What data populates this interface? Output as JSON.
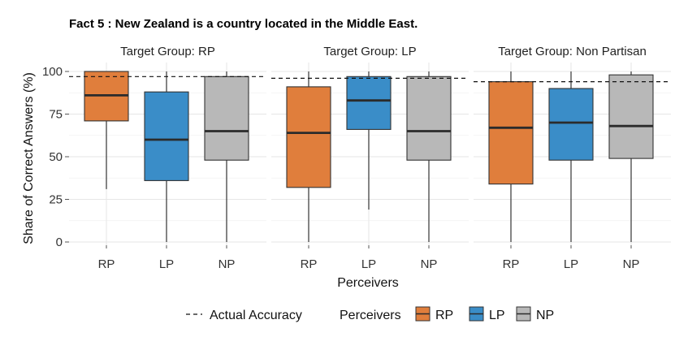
{
  "chart_data": {
    "type": "boxplot",
    "title": "Fact 5 :  New Zealand is a country located in the Middle East.",
    "ylabel": "Share of Correct Answers (%)",
    "xlabel": "Perceivers",
    "ylim": [
      0,
      100
    ],
    "yticks": [
      "0",
      "25",
      "50",
      "75",
      "100"
    ],
    "categories": [
      "RP",
      "LP",
      "NP"
    ],
    "colors": {
      "RP": "#E07E3C",
      "LP": "#3A8DC8",
      "NP": "#B8B8B8"
    },
    "panels": [
      {
        "label": "Target Group: RP",
        "actual_accuracy": 97,
        "boxes": [
          {
            "group": "RP",
            "min": 31,
            "q1": 71,
            "median": 86,
            "q3": 100,
            "max": 100
          },
          {
            "group": "LP",
            "min": 0,
            "q1": 36,
            "median": 60,
            "q3": 88,
            "max": 100
          },
          {
            "group": "NP",
            "min": 0,
            "q1": 48,
            "median": 65,
            "q3": 97,
            "max": 100
          }
        ]
      },
      {
        "label": "Target Group: LP",
        "actual_accuracy": 96,
        "boxes": [
          {
            "group": "RP",
            "min": 0,
            "q1": 32,
            "median": 64,
            "q3": 91,
            "max": 100
          },
          {
            "group": "LP",
            "min": 19,
            "q1": 66,
            "median": 83,
            "q3": 97,
            "max": 100
          },
          {
            "group": "NP",
            "min": 0,
            "q1": 48,
            "median": 65,
            "q3": 97,
            "max": 100
          }
        ]
      },
      {
        "label": "Target Group: Non Partisan",
        "actual_accuracy": 94,
        "boxes": [
          {
            "group": "RP",
            "min": 0,
            "q1": 34,
            "median": 67,
            "q3": 94,
            "max": 100
          },
          {
            "group": "LP",
            "min": 0,
            "q1": 48,
            "median": 70,
            "q3": 90,
            "max": 100
          },
          {
            "group": "NP",
            "min": 0,
            "q1": 49,
            "median": 68,
            "q3": 98,
            "max": 100
          }
        ]
      }
    ],
    "legend": {
      "line_label": "Actual Accuracy",
      "fill_title": "Perceivers",
      "items": [
        "RP",
        "LP",
        "NP"
      ]
    }
  }
}
